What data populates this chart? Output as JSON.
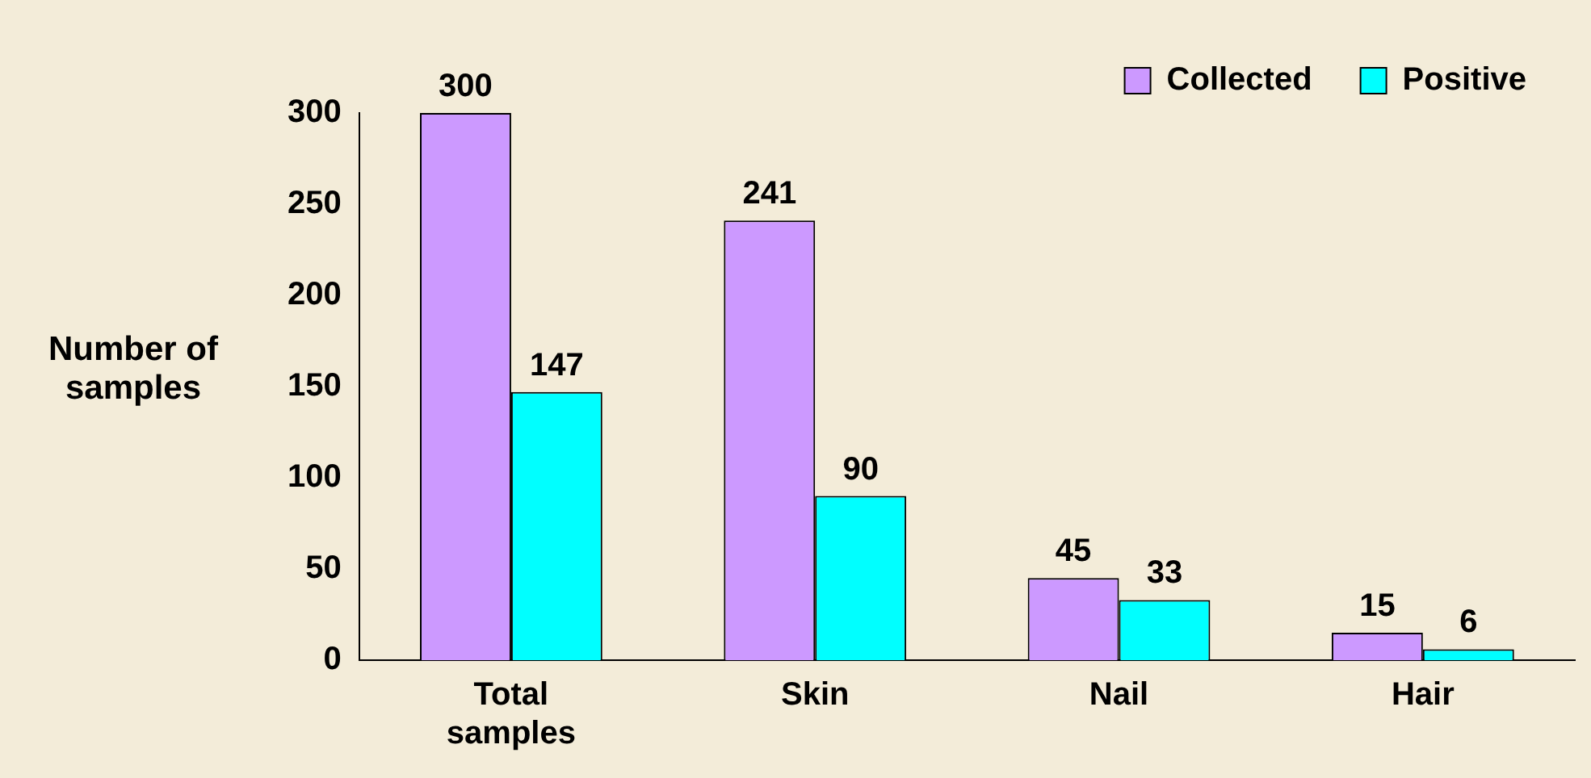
{
  "chart_data": {
    "type": "bar",
    "ylabel": "Number of samples",
    "categories": [
      "Total samples",
      "Skin",
      "Nail",
      "Hair"
    ],
    "series": [
      {
        "name": "Collected",
        "color": "#cc99ff",
        "values": [
          300,
          241,
          45,
          15
        ]
      },
      {
        "name": "Positive",
        "color": "#00ffff",
        "values": [
          147,
          90,
          33,
          6
        ]
      }
    ],
    "ylim": [
      0,
      300
    ],
    "yticks": [
      0,
      50,
      100,
      150,
      200,
      250,
      300
    ],
    "grid": false,
    "legend": "top right",
    "data_labels": true
  }
}
